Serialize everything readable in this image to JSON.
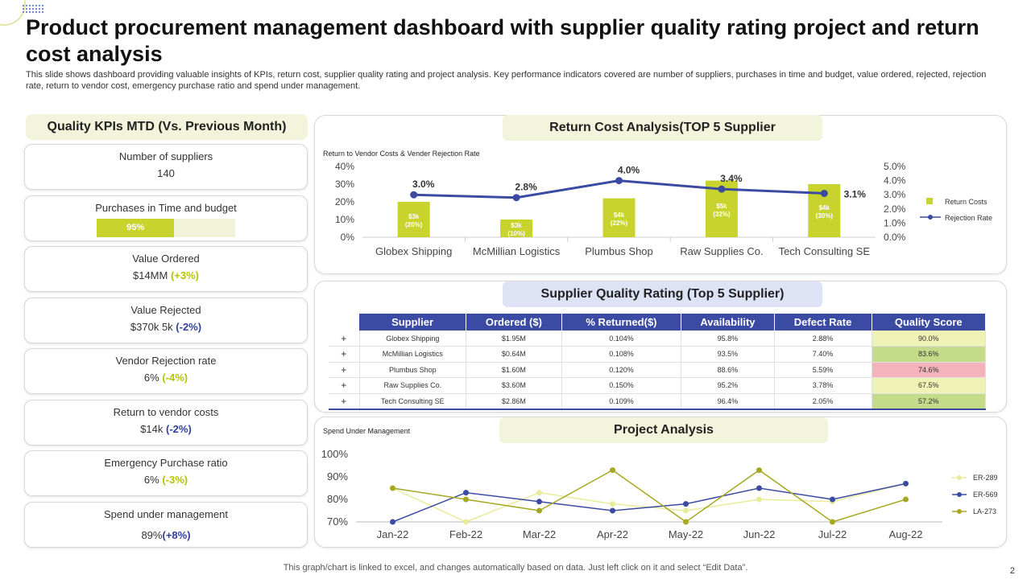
{
  "title": "Product procurement management dashboard with supplier quality rating project and return cost analysis",
  "subtitle": "This slide shows dashboard providing valuable insights of KPIs, return cost, supplier quality rating and project analysis. Key performance indicators covered are number of suppliers, purchases in time and budget, value ordered, rejected, rejection rate, return to vendor cost, emergency purchase ratio and spend under management.",
  "kpi": {
    "header": "Quality KPIs  MTD (Vs. Previous Month)",
    "suppliers": {
      "label": "Number of suppliers",
      "value": "140"
    },
    "purchases": {
      "label": "Purchases in Time  and budget",
      "value": "95%",
      "fill_fraction": 0.56
    },
    "ordered": {
      "label": "Value Ordered",
      "value": "$14MM",
      "change": "(+3%)"
    },
    "rejected": {
      "label": "Value Rejected",
      "value": "$370k 5k",
      "change": "(-2%)"
    },
    "rejection_rate": {
      "label": "Vendor Rejection rate",
      "value": "6%",
      "change": "(-4%)"
    },
    "return_costs": {
      "label": "Return to vendor  costs",
      "value": "$14k",
      "change": "(-2%)"
    },
    "emergency": {
      "label": "Emergency Purchase ratio",
      "value": "6%",
      "change": "(-3%)"
    },
    "spend": {
      "label": "Spend under management",
      "value": "89%",
      "change": "(+8%)"
    }
  },
  "return_panel": {
    "title": "Return Cost Analysis(TOP 5 Supplier",
    "caption": "Return to Vendor Costs & Vender Rejection Rate"
  },
  "quality_panel": {
    "title": "Supplier Quality Rating (Top 5 Supplier)"
  },
  "project_panel": {
    "title": "Project Analysis",
    "caption": "Spend Under Management"
  },
  "table": {
    "headers": [
      "Supplier",
      "Ordered ($)",
      "% Returned($)",
      "Availability",
      "Defect Rate",
      "Quality Score"
    ],
    "rows": [
      [
        "+",
        "Globex Shipping",
        "$1.95M",
        "0.104%",
        "95.8%",
        "2.88%",
        "90.0%"
      ],
      [
        "+",
        "McMillian Logistics",
        "$0.64M",
        "0.108%",
        "93.5%",
        "7.40%",
        "83.6%"
      ],
      [
        "+",
        "Plumbus Shop",
        "$1.60M",
        "0.120%",
        "88.6%",
        "5.59%",
        "74.6%"
      ],
      [
        "+",
        "Raw Supplies Co.",
        "$3.60M",
        "0.150%",
        "95.2%",
        "3.78%",
        "67.5%"
      ],
      [
        "+",
        "Tech Consulting SE",
        "$2.86M",
        "0.109%",
        "96.4%",
        "2.05%",
        "57.2%"
      ]
    ]
  },
  "colors": {
    "olive": "#c8d32e",
    "navy": "#3b4ba3",
    "pale": "#e8ec9a",
    "dark_olive": "#a6a823"
  },
  "chart_data": [
    {
      "type": "bar",
      "title": "Return to Vendor Costs & Vender Rejection Rate",
      "categories": [
        "Globex Shipping",
        "McMillian Logistics",
        "Plumbus Shop",
        "Raw Supplies Co.",
        "Tech Consulting SE"
      ],
      "series": [
        {
          "name": "Return Costs",
          "axis": "left",
          "values": [
            20,
            10,
            22,
            32,
            30
          ],
          "labels": [
            "$3k\n(20%)",
            "$3k\n(10%)",
            "$4k\n(22%)",
            "$5k\n(32%)",
            "$4k\n(30%)"
          ]
        },
        {
          "name": "Rejection Rate",
          "axis": "right",
          "type": "line",
          "values": [
            3.0,
            2.8,
            4.0,
            3.4,
            3.1
          ],
          "labels": [
            "3.0%",
            "2.8%",
            "4.0%",
            "3.4%",
            "3.1%"
          ]
        }
      ],
      "left_ticks": [
        "0%",
        "10%",
        "20%",
        "30%",
        "40%"
      ],
      "right_ticks": [
        "0.0%",
        "1.0%",
        "2.0%",
        "3.0%",
        "4.0%",
        "5.0%"
      ],
      "ylim": [
        0,
        40
      ],
      "y2lim": [
        0,
        5
      ],
      "legend": "right"
    },
    {
      "type": "line",
      "title": "Spend Under Management",
      "categories": [
        "Jan-22",
        "Feb-22",
        "Mar-22",
        "Apr-22",
        "May-22",
        "Jun-22",
        "Jul-22",
        "Aug-22"
      ],
      "series": [
        {
          "name": "ER-289",
          "values": [
            85,
            70,
            83,
            78,
            75,
            80,
            79,
            87
          ]
        },
        {
          "name": "ER-569",
          "values": [
            70,
            83,
            79,
            75,
            78,
            85,
            80,
            87
          ]
        },
        {
          "name": "LA-273",
          "values": [
            85,
            80,
            75,
            93,
            70,
            93,
            70,
            80
          ]
        }
      ],
      "y_ticks": [
        "70%",
        "80%",
        "90%",
        "100%"
      ],
      "ylim": [
        70,
        100
      ],
      "legend": "right"
    }
  ],
  "footer": "This graph/chart is linked to excel,  and changes automatically based on data. Just left click on it and select “Edit Data”.",
  "page_number": "2"
}
